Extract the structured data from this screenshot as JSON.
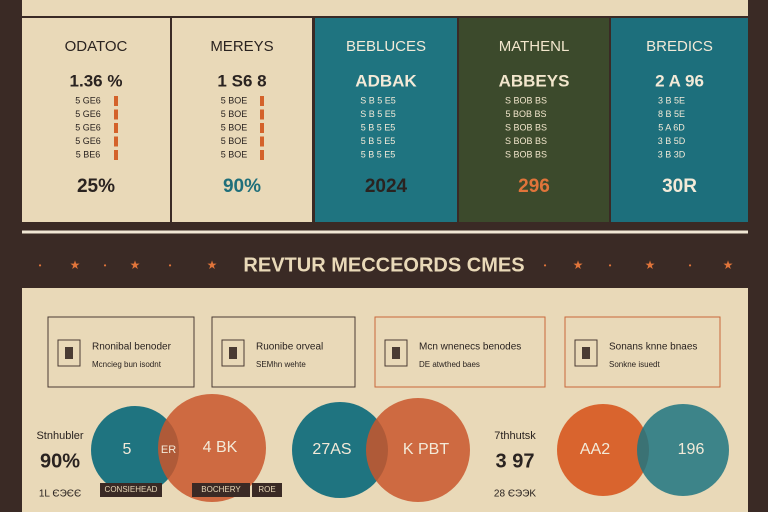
{
  "panels": [
    {
      "title": "ODATOC",
      "headline": "1.36 %",
      "rows": [
        "5 GE6",
        "5 GE6",
        "5 GE6",
        "5 GE6",
        "5 BE6"
      ],
      "footer": "25%"
    },
    {
      "title": "MEREYS",
      "headline": "1 S6 8",
      "rows": [
        "5 BOE",
        "5 BOE",
        "5 BOE",
        "5 BOE",
        "5 BOE"
      ],
      "footer": "90%"
    },
    {
      "title": "BEBLUCES",
      "headline": "ADBAK",
      "rows": [
        "S B 5 E5",
        "S B 5 E5",
        "5 B 5 E5",
        "5 B 5 E5",
        "5 B 5 E5"
      ],
      "footer": "2024"
    },
    {
      "title": "MATHENL",
      "headline": "ABBEYS",
      "rows": [
        "S BOB BS",
        "5 BOB BS",
        "S BOB BS",
        "S BOB BS",
        "S BOB BS"
      ],
      "footer": "296"
    },
    {
      "title": "BREDICS",
      "headline": "2 A 96",
      "rows": [
        "3 B 5E",
        "8 B 5E",
        "5 A 6D",
        "3 B 5D",
        "3 B 3D"
      ],
      "footer": "30R"
    }
  ],
  "banner": "REVTUR MECCEORDS CMES",
  "boxes": [
    {
      "heading": "Rnonibal benoder",
      "text": "Mcncieg bun isodnt"
    },
    {
      "heading": "Ruonibe orveal",
      "text": "SEMhn wehte"
    },
    {
      "heading": "Mcn wnenecs benodes",
      "text": "DE atwthed baes"
    },
    {
      "heading": "Sonans knne bnaes",
      "text": "Sonkne isuedt"
    }
  ],
  "left_stat": {
    "label": "Stnhubler",
    "value": "90%",
    "note": "1L ЄЭЄЄ"
  },
  "middle_stat": {
    "label": "7thhutsk",
    "value": "3 97",
    "note": "28 ЄЭЭK"
  },
  "venns": [
    {
      "left": "5",
      "overlap": "ER",
      "right": "4 BK"
    },
    {
      "left": "27AS",
      "overlap": "",
      "right": "K PBT"
    },
    {
      "left": "AA2",
      "overlap": "",
      "right": "196"
    }
  ],
  "tags": [
    "CONSIEHEAD",
    "BOCHERY",
    "ROE"
  ]
}
